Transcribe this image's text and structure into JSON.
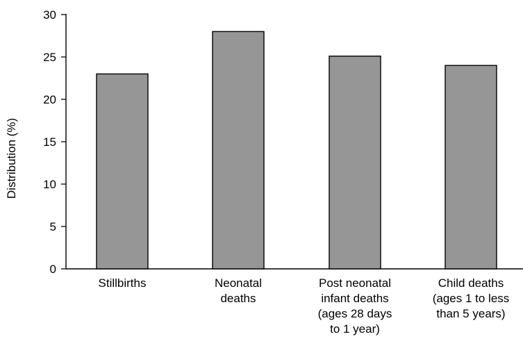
{
  "chart_data": {
    "type": "bar",
    "title": "",
    "xlabel": "",
    "ylabel": "Distribution (%)",
    "ylim": [
      0,
      30
    ],
    "yticks": [
      0,
      5,
      10,
      15,
      20,
      25,
      30
    ],
    "grid": false,
    "legend": "none",
    "categories": [
      [
        "Stillbirths"
      ],
      [
        "Neonatal",
        "deaths"
      ],
      [
        "Post neonatal",
        "infant deaths",
        "(ages 28 days",
        "to 1 year)"
      ],
      [
        "Child deaths",
        "(ages 1 to less",
        "than 5 years)"
      ]
    ],
    "values": [
      23,
      28,
      25.1,
      24
    ],
    "bar_color": "#969696",
    "bar_edge_color": "#000000"
  }
}
